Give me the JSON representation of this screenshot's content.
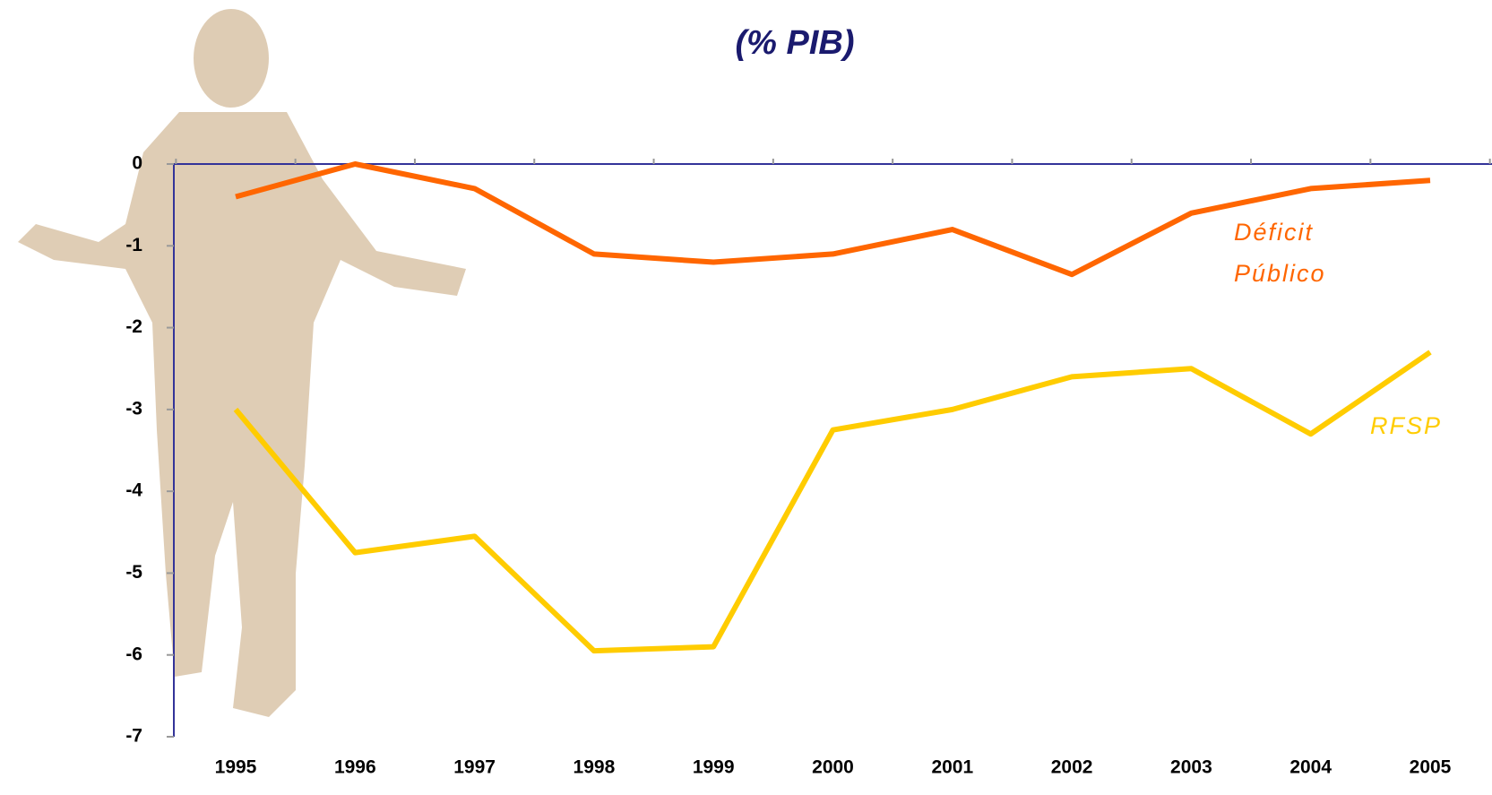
{
  "chart_data": {
    "type": "line",
    "title": "(% PIB)",
    "categories": [
      "1995",
      "1996",
      "1997",
      "1998",
      "1999",
      "2000",
      "2001",
      "2002",
      "2003",
      "2004",
      "2005"
    ],
    "series": [
      {
        "name": "Déficit Público",
        "color": "#ff6600",
        "values": [
          -0.4,
          0,
          -0.3,
          -1.1,
          -1.2,
          -1.1,
          -0.8,
          -1.35,
          -0.6,
          -0.3,
          -0.2
        ]
      },
      {
        "name": "RFSP",
        "color": "#ffcc00",
        "values": [
          -3.0,
          -4.75,
          -4.55,
          -5.95,
          -5.9,
          -3.25,
          -3.0,
          -2.6,
          -2.5,
          -3.3,
          -2.3
        ]
      }
    ],
    "ylim": [
      -7,
      0
    ],
    "yticks": [
      0,
      -1,
      -2,
      -3,
      -4,
      -5,
      -6,
      -7
    ]
  }
}
